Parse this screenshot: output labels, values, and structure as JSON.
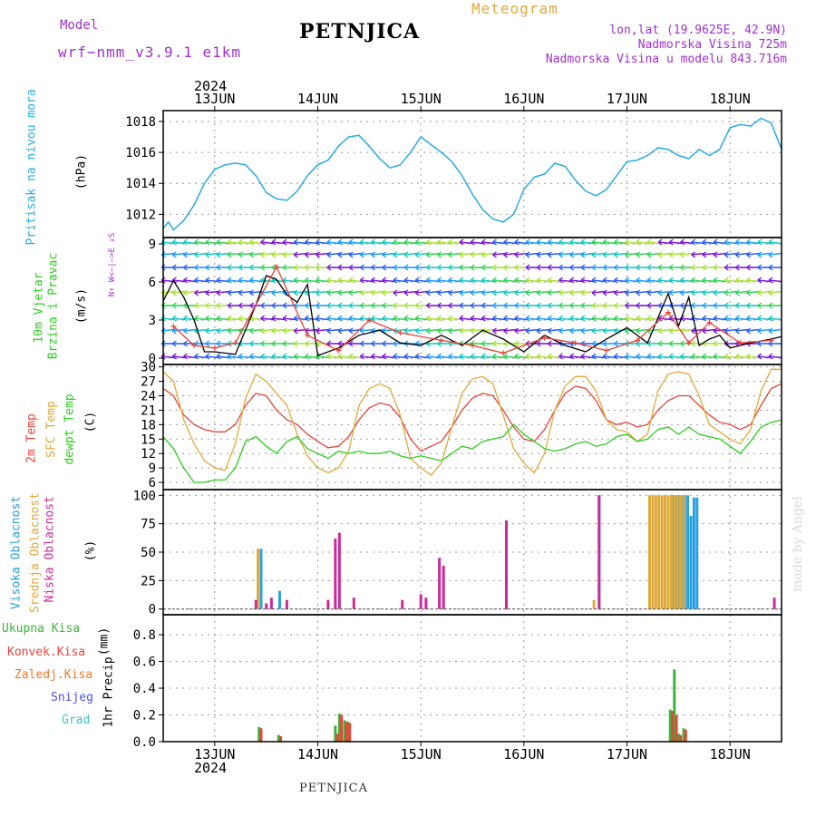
{
  "header": {
    "model_label": "Model",
    "model_name": "wrf−nmm_v3.9.1 e1km",
    "title": "PETNJICA",
    "meteogram": "Meteogram",
    "lonlat": "lon,lat (19.9625E, 42.9N)",
    "elevation": "Nadmorska Visina 725m",
    "model_elevation": "Nadmorska Visina u modelu 843.716m",
    "year_top": "2024",
    "year_bottom": "2024",
    "footer": "PETNJICA",
    "watermark": "made by Angel"
  },
  "colors": {
    "pressure": "#29abe2",
    "temp2m": "#e8433a",
    "sfctemp": "#e0a93b",
    "dewpt": "#2ecc1e",
    "high_cloud": "#29a0e0",
    "mid_cloud": "#e0a93b",
    "low_cloud": "#cc2a9a",
    "total_precip": "#3cb43c",
    "conv_precip": "#e8433a",
    "frozen_precip": "#f07828",
    "snow": "#5050e0",
    "hail": "#3cc8c8",
    "purple_text": "#a030d0",
    "grid": "#999999"
  },
  "chart_data": [
    {
      "type": "line",
      "id": "pressure",
      "ylabel": "Pritisak na nivou mora",
      "unit": "(hPa)",
      "ylim": [
        1010.5,
        1018.7
      ],
      "yticks": [
        1012,
        1014,
        1016,
        1018
      ],
      "grid": true,
      "xlim": [
        12.5,
        18.5
      ],
      "x_tick_labels": [
        "13JUN",
        "14JUN",
        "15JUN",
        "16JUN",
        "17JUN",
        "18JUN"
      ],
      "x_tick_positions": [
        13,
        14,
        15,
        16,
        17,
        18
      ],
      "series": [
        {
          "color_key": "pressure",
          "x": [
            12.5,
            12.55,
            12.6,
            12.7,
            12.8,
            12.9,
            13.0,
            13.1,
            13.2,
            13.3,
            13.4,
            13.5,
            13.6,
            13.7,
            13.8,
            13.9,
            14.0,
            14.1,
            14.2,
            14.3,
            14.4,
            14.5,
            14.6,
            14.7,
            14.8,
            14.9,
            15.0,
            15.1,
            15.2,
            15.3,
            15.4,
            15.5,
            15.6,
            15.7,
            15.8,
            15.9,
            16.0,
            16.1,
            16.2,
            16.3,
            16.4,
            16.5,
            16.6,
            16.7,
            16.8,
            16.9,
            17.0,
            17.1,
            17.2,
            17.3,
            17.4,
            17.5,
            17.6,
            17.7,
            17.8,
            17.9,
            18.0,
            18.1,
            18.2,
            18.3,
            18.4,
            18.5
          ],
          "y": [
            1011.1,
            1011.5,
            1011.0,
            1011.6,
            1012.6,
            1014.0,
            1014.9,
            1015.2,
            1015.3,
            1015.2,
            1014.5,
            1013.4,
            1013.0,
            1012.9,
            1013.5,
            1014.5,
            1015.2,
            1015.5,
            1016.4,
            1017.0,
            1017.1,
            1016.4,
            1015.6,
            1015.0,
            1015.2,
            1016.0,
            1017.0,
            1016.5,
            1016.0,
            1015.4,
            1014.5,
            1013.3,
            1012.3,
            1011.7,
            1011.5,
            1012.0,
            1013.6,
            1014.4,
            1014.6,
            1015.3,
            1015.1,
            1014.2,
            1013.5,
            1013.2,
            1013.6,
            1014.5,
            1015.4,
            1015.5,
            1015.8,
            1016.3,
            1016.2,
            1015.8,
            1015.6,
            1016.2,
            1015.8,
            1016.2,
            1017.6,
            1017.8,
            1017.7,
            1018.2,
            1017.9,
            1016.2
          ]
        }
      ]
    },
    {
      "type": "wind",
      "id": "wind",
      "ylabel_lines": [
        "10m Vjetar",
        "Brzina i Pravac"
      ],
      "unit": "(m/s)",
      "legend_glyph": "N↑ W<—|—>E ↓S",
      "ylim": [
        -0.5,
        9.5
      ],
      "yticks": [
        0,
        3,
        6,
        9
      ],
      "grid": true,
      "xlim": [
        12.5,
        18.5
      ],
      "series": [
        {
          "name": "speed",
          "color": "#000000",
          "x": [
            12.5,
            12.6,
            12.7,
            12.8,
            12.9,
            13.0,
            13.2,
            13.4,
            13.5,
            13.6,
            13.7,
            13.8,
            13.9,
            14.0,
            14.2,
            14.4,
            14.6,
            14.8,
            15.0,
            15.2,
            15.4,
            15.6,
            15.8,
            16.0,
            16.2,
            16.4,
            16.6,
            16.8,
            17.0,
            17.2,
            17.4,
            17.5,
            17.6,
            17.7,
            17.8,
            17.9,
            18.0,
            18.2,
            18.4,
            18.5
          ],
          "y": [
            4.5,
            6.1,
            4.8,
            3.0,
            0.5,
            0.5,
            0.3,
            4.2,
            6.5,
            6.2,
            5.0,
            4.4,
            5.8,
            0.2,
            0.8,
            1.8,
            2.2,
            1.2,
            1.0,
            1.8,
            1.0,
            2.2,
            1.5,
            0.5,
            1.8,
            1.0,
            0.5,
            1.5,
            2.4,
            1.2,
            5.1,
            2.5,
            4.8,
            1.0,
            1.5,
            1.8,
            0.8,
            1.2,
            1.5,
            1.7
          ]
        },
        {
          "name": "gust",
          "color": "#e8433a",
          "x": [
            12.6,
            12.8,
            13.0,
            13.2,
            13.6,
            13.9,
            14.2,
            14.5,
            14.8,
            15.2,
            15.5,
            15.8,
            16.2,
            16.5,
            16.8,
            17.1,
            17.4,
            17.6,
            17.8,
            18.1,
            18.4
          ],
          "y": [
            2.5,
            1.0,
            0.8,
            1.2,
            7.2,
            1.8,
            0.6,
            3.0,
            2.0,
            1.4,
            1.0,
            0.4,
            1.6,
            1.2,
            0.6,
            1.4,
            3.6,
            1.2,
            2.8,
            1.2,
            1.4
          ]
        }
      ]
    },
    {
      "type": "line",
      "id": "temperature",
      "ylabel_lines": [
        "2m Temp",
        "SFC Temp",
        "dewpt Temp"
      ],
      "unit": "(C)",
      "ylim": [
        4.5,
        30.5
      ],
      "yticks": [
        6,
        9,
        12,
        15,
        18,
        21,
        24,
        27,
        30
      ],
      "grid": true,
      "xlim": [
        12.5,
        18.5
      ],
      "series": [
        {
          "name": "2m Temp",
          "color_key": "temp2m",
          "x": [
            12.5,
            12.6,
            12.7,
            12.8,
            12.9,
            13.0,
            13.1,
            13.2,
            13.3,
            13.4,
            13.5,
            13.6,
            13.7,
            13.8,
            13.9,
            14.0,
            14.1,
            14.2,
            14.3,
            14.4,
            14.5,
            14.6,
            14.7,
            14.8,
            14.9,
            15.0,
            15.1,
            15.2,
            15.3,
            15.4,
            15.5,
            15.6,
            15.7,
            15.8,
            15.9,
            16.0,
            16.1,
            16.2,
            16.3,
            16.4,
            16.5,
            16.6,
            16.7,
            16.8,
            16.9,
            17.0,
            17.1,
            17.2,
            17.3,
            17.4,
            17.5,
            17.6,
            17.7,
            17.8,
            17.9,
            18.0,
            18.1,
            18.2,
            18.3,
            18.4,
            18.5
          ],
          "y": [
            25.5,
            24.0,
            20.0,
            18.0,
            17.0,
            16.5,
            16.5,
            18.0,
            22.0,
            24.5,
            24.0,
            21.0,
            19.0,
            18.0,
            16.0,
            14.5,
            13.2,
            13.5,
            15.5,
            19.0,
            21.5,
            22.5,
            22.0,
            19.5,
            15.0,
            12.5,
            13.5,
            14.5,
            17.5,
            21.0,
            23.5,
            24.5,
            24.0,
            21.0,
            17.5,
            15.0,
            14.5,
            17.0,
            21.0,
            24.5,
            26.0,
            25.5,
            23.0,
            19.0,
            18.0,
            18.5,
            17.5,
            18.0,
            21.0,
            23.0,
            24.0,
            24.0,
            22.0,
            20.0,
            18.5,
            18.0,
            17.0,
            18.0,
            22.0,
            25.5,
            26.5
          ]
        },
        {
          "name": "SFC Temp",
          "color_key": "sfctemp",
          "x": [
            12.5,
            12.6,
            12.7,
            12.8,
            12.9,
            13.0,
            13.1,
            13.2,
            13.3,
            13.4,
            13.5,
            13.6,
            13.7,
            13.8,
            13.9,
            14.0,
            14.1,
            14.2,
            14.3,
            14.4,
            14.5,
            14.6,
            14.7,
            14.8,
            14.9,
            15.0,
            15.1,
            15.2,
            15.3,
            15.4,
            15.5,
            15.6,
            15.7,
            15.8,
            15.9,
            16.0,
            16.1,
            16.2,
            16.3,
            16.4,
            16.5,
            16.6,
            16.7,
            16.8,
            16.9,
            17.0,
            17.1,
            17.2,
            17.3,
            17.4,
            17.5,
            17.6,
            17.7,
            17.8,
            17.9,
            18.0,
            18.1,
            18.2,
            18.3,
            18.4,
            18.5
          ],
          "y": [
            29.0,
            27.0,
            19.0,
            14.0,
            10.5,
            9.0,
            8.5,
            14.0,
            23.5,
            28.5,
            27.0,
            24.5,
            22.0,
            16.0,
            11.5,
            9.0,
            8.0,
            9.0,
            12.5,
            22.0,
            25.5,
            26.5,
            25.5,
            20.0,
            11.0,
            9.0,
            7.5,
            10.0,
            17.5,
            24.5,
            27.5,
            28.0,
            26.5,
            20.0,
            13.0,
            10.0,
            8.0,
            12.0,
            21.0,
            26.0,
            28.0,
            28.0,
            25.0,
            19.0,
            17.0,
            16.5,
            14.5,
            16.0,
            25.0,
            28.5,
            29.0,
            28.5,
            24.0,
            18.0,
            16.5,
            15.0,
            14.0,
            17.0,
            25.0,
            29.5,
            29.5
          ]
        },
        {
          "name": "dewpt Temp",
          "color_key": "dewpt",
          "x": [
            12.5,
            12.6,
            12.7,
            12.8,
            12.9,
            13.0,
            13.1,
            13.2,
            13.3,
            13.4,
            13.5,
            13.6,
            13.7,
            13.8,
            13.9,
            14.0,
            14.1,
            14.2,
            14.3,
            14.4,
            14.5,
            14.6,
            14.7,
            14.8,
            14.9,
            15.0,
            15.1,
            15.2,
            15.3,
            15.4,
            15.5,
            15.6,
            15.7,
            15.8,
            15.9,
            16.0,
            16.1,
            16.2,
            16.3,
            16.4,
            16.5,
            16.6,
            16.7,
            16.8,
            16.9,
            17.0,
            17.1,
            17.2,
            17.3,
            17.4,
            17.5,
            17.6,
            17.7,
            17.8,
            17.9,
            18.0,
            18.1,
            18.2,
            18.3,
            18.4,
            18.5
          ],
          "y": [
            15.5,
            13.0,
            9.0,
            6.0,
            6.0,
            6.5,
            6.5,
            9.0,
            14.5,
            15.5,
            13.5,
            12.0,
            14.5,
            15.5,
            13.0,
            12.0,
            11.0,
            12.5,
            12.0,
            12.5,
            12.0,
            12.0,
            12.5,
            11.5,
            11.0,
            11.5,
            11.0,
            10.5,
            12.0,
            13.5,
            13.0,
            14.5,
            15.0,
            15.5,
            18.0,
            16.0,
            14.5,
            13.0,
            12.5,
            13.0,
            14.0,
            14.5,
            13.5,
            14.0,
            15.5,
            16.0,
            14.5,
            15.0,
            17.0,
            17.5,
            16.0,
            17.5,
            16.0,
            15.5,
            15.0,
            13.5,
            12.0,
            14.5,
            17.5,
            18.5,
            19.0
          ]
        }
      ]
    },
    {
      "type": "bar",
      "id": "clouds",
      "ylabel_lines": [
        "Visoka Oblacnost",
        "Srednja Oblacnost",
        "Niska Oblacnost"
      ],
      "unit": "(%)",
      "ylim": [
        -5,
        105
      ],
      "yticks": [
        0,
        25,
        50,
        75,
        100
      ],
      "grid": true,
      "xlim": [
        12.5,
        18.5
      ],
      "series": [
        {
          "name": "Visoka Oblacnost",
          "color_key": "high_cloud",
          "x": [
            13.45,
            13.63,
            16.73,
            17.44,
            17.47,
            17.5,
            17.53,
            17.56,
            17.59,
            17.62,
            17.65,
            17.68
          ],
          "y": [
            53,
            16,
            100,
            100,
            100,
            100,
            100,
            100,
            100,
            82,
            98,
            98
          ]
        },
        {
          "name": "Srednja Oblacnost",
          "color_key": "mid_cloud",
          "x": [
            13.42,
            16.68,
            17.22,
            17.25,
            17.28,
            17.31,
            17.34,
            17.37,
            17.4,
            17.43,
            17.46,
            17.49,
            17.52,
            17.55
          ],
          "y": [
            53,
            8,
            100,
            100,
            100,
            100,
            100,
            100,
            100,
            100,
            100,
            100,
            100,
            100
          ]
        },
        {
          "name": "Niska Oblacnost",
          "color_key": "low_cloud",
          "x": [
            13.4,
            13.5,
            13.55,
            13.7,
            14.17,
            14.21,
            14.1,
            14.35,
            14.82,
            15.0,
            15.05,
            15.18,
            15.22,
            15.83,
            16.73,
            18.43
          ],
          "y": [
            8,
            5,
            10,
            8,
            62,
            67,
            8,
            10,
            8,
            13,
            10,
            45,
            38,
            78,
            100,
            10
          ]
        }
      ]
    },
    {
      "type": "bar",
      "id": "precip",
      "ylabel": "1hr Precip",
      "unit": "(mm)",
      "ylim": [
        0,
        0.95
      ],
      "yticks": [
        0.0,
        0.2,
        0.4,
        0.6,
        0.8
      ],
      "grid": true,
      "xlim": [
        12.5,
        18.5
      ],
      "legend": [
        "Ukupna Kisa",
        "Konvek.Kisa",
        "Zaledj.Kisa",
        "Snijeg",
        "Grad"
      ],
      "series": [
        {
          "name": "Ukupna Kisa",
          "color_key": "total_precip",
          "x": [
            13.43,
            13.62,
            14.17,
            14.21,
            14.26,
            14.29,
            17.42,
            17.46,
            17.5,
            17.55
          ],
          "y": [
            0.11,
            0.05,
            0.12,
            0.21,
            0.16,
            0.15,
            0.24,
            0.54,
            0.06,
            0.1
          ]
        },
        {
          "name": "Konvek.Kisa",
          "color_key": "conv_precip",
          "x": [
            13.45,
            13.64,
            14.19,
            14.23,
            14.28,
            14.31,
            17.44,
            17.48,
            17.52,
            17.57
          ],
          "y": [
            0.1,
            0.04,
            0.06,
            0.2,
            0.15,
            0.14,
            0.23,
            0.2,
            0.05,
            0.09
          ]
        }
      ]
    }
  ]
}
